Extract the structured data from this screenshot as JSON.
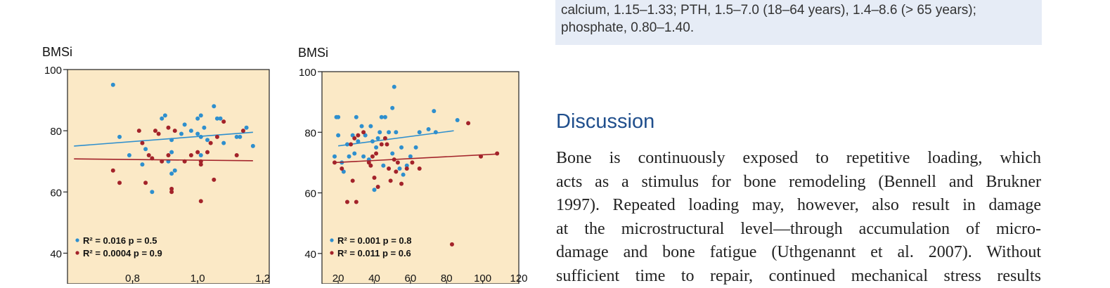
{
  "note_box": {
    "line1": "calcium, 1.15–1.33; PTH, 1.5–7.0 (18–64 years), 1.4–8.6 (> 65 years);",
    "line2": "phosphate, 0.80–1.40."
  },
  "discussion": {
    "heading": "Discussion",
    "lines": [
      "Bone is continuously exposed to repetitive loading, which",
      "acts as a stimulus for bone remodeling (Bennell and Brukner",
      "1997). Repeated loading may, however, also result in damage",
      "at the microstructural level—through accumulation of micro-",
      "damage and bone fatigue (Uthgenannt et al. 2007). Without",
      "sufficient time to repair, continued mechanical stress results"
    ]
  },
  "colors": {
    "panel_bg": "#fbe9c6",
    "series_blue": "#2e8fce",
    "series_red": "#a3232a",
    "heading_blue": "#1f4e8c",
    "note_bg": "#e6ecf6"
  },
  "chart_data": [
    {
      "type": "scatter",
      "ylabel": "BMSi",
      "xlim": [
        0.6,
        1.22
      ],
      "ylim": [
        30,
        100
      ],
      "xticks": [
        "0.8",
        "1.0",
        "1.2"
      ],
      "yticks": [
        "40",
        "60",
        "80",
        "100"
      ],
      "series": [
        {
          "label": "R² = 0.016    p = 0.5",
          "color": "blue",
          "points": [
            [
              0.74,
              95
            ],
            [
              0.76,
              78
            ],
            [
              0.79,
              72
            ],
            [
              0.83,
              69
            ],
            [
              0.84,
              74
            ],
            [
              0.86,
              60
            ],
            [
              0.89,
              84
            ],
            [
              0.9,
              85
            ],
            [
              0.91,
              70
            ],
            [
              0.92,
              73
            ],
            [
              0.92,
              66
            ],
            [
              0.92,
              77
            ],
            [
              0.93,
              67
            ],
            [
              0.95,
              79
            ],
            [
              0.96,
              82
            ],
            [
              0.98,
              80
            ],
            [
              1.0,
              79
            ],
            [
              1.0,
              84
            ],
            [
              1.01,
              85
            ],
            [
              1.01,
              78
            ],
            [
              1.01,
              72
            ],
            [
              1.02,
              81
            ],
            [
              1.03,
              77
            ],
            [
              1.05,
              88
            ],
            [
              1.06,
              84
            ],
            [
              1.07,
              84
            ],
            [
              1.08,
              76
            ],
            [
              1.12,
              78
            ],
            [
              1.13,
              78
            ],
            [
              1.15,
              81
            ],
            [
              1.17,
              75
            ]
          ],
          "trend": [
            [
              0.62,
              75
            ],
            [
              1.17,
              79.5
            ]
          ]
        },
        {
          "label": "R² = 0.0004  p = 0.9",
          "color": "red",
          "points": [
            [
              0.74,
              67
            ],
            [
              0.76,
              63
            ],
            [
              0.82,
              80
            ],
            [
              0.83,
              76
            ],
            [
              0.84,
              63
            ],
            [
              0.85,
              72
            ],
            [
              0.86,
              71
            ],
            [
              0.87,
              80
            ],
            [
              0.88,
              79
            ],
            [
              0.89,
              70
            ],
            [
              0.91,
              81
            ],
            [
              0.91,
              72
            ],
            [
              0.92,
              61
            ],
            [
              0.92,
              60
            ],
            [
              0.93,
              80
            ],
            [
              0.96,
              70
            ],
            [
              0.98,
              72
            ],
            [
              1.0,
              73
            ],
            [
              1.01,
              70
            ],
            [
              1.01,
              57
            ],
            [
              1.01,
              69
            ],
            [
              1.03,
              73
            ],
            [
              1.04,
              76
            ],
            [
              1.05,
              64
            ],
            [
              1.06,
              78
            ],
            [
              1.08,
              83
            ],
            [
              1.12,
              72
            ],
            [
              1.14,
              80
            ]
          ],
          "trend": [
            [
              0.62,
              70.8
            ],
            [
              1.17,
              70.2
            ]
          ]
        }
      ]
    },
    {
      "type": "scatter",
      "ylabel": "BMSi",
      "xlim": [
        11,
        120
      ],
      "ylim": [
        30,
        100
      ],
      "xticks": [
        "20",
        "40",
        "60",
        "80",
        "100",
        "120"
      ],
      "yticks": [
        "40",
        "60",
        "80",
        "100"
      ],
      "series": [
        {
          "label": "R² = 0.001  p = 0.8",
          "color": "blue",
          "points": [
            [
              18,
              72
            ],
            [
              19,
              85
            ],
            [
              20,
              85
            ],
            [
              20,
              79
            ],
            [
              22,
              70
            ],
            [
              23,
              67
            ],
            [
              25,
              76
            ],
            [
              26,
              72
            ],
            [
              28,
              79
            ],
            [
              29,
              73
            ],
            [
              30,
              85
            ],
            [
              31,
              77
            ],
            [
              33,
              82
            ],
            [
              34,
              72
            ],
            [
              35,
              79
            ],
            [
              37,
              71
            ],
            [
              38,
              82
            ],
            [
              39,
              77
            ],
            [
              40,
              61
            ],
            [
              41,
              75
            ],
            [
              42,
              78
            ],
            [
              43,
              80
            ],
            [
              44,
              85
            ],
            [
              45,
              69
            ],
            [
              46,
              85
            ],
            [
              48,
              80
            ],
            [
              50,
              73
            ],
            [
              50,
              88
            ],
            [
              51,
              95
            ],
            [
              52,
              80
            ],
            [
              54,
              68
            ],
            [
              55,
              75
            ],
            [
              56,
              66
            ],
            [
              58,
              69
            ],
            [
              60,
              72
            ],
            [
              63,
              75
            ],
            [
              65,
              80
            ],
            [
              70,
              81
            ],
            [
              73,
              87
            ],
            [
              74,
              80
            ],
            [
              86,
              84
            ]
          ],
          "trend": [
            [
              20,
              75.5
            ],
            [
              84,
              80.5
            ]
          ]
        },
        {
          "label": "R² = 0.011  p = 0.6",
          "color": "red",
          "points": [
            [
              18,
              70
            ],
            [
              22,
              68
            ],
            [
              25,
              57
            ],
            [
              27,
              76
            ],
            [
              28,
              64
            ],
            [
              29,
              78
            ],
            [
              30,
              57
            ],
            [
              31,
              79
            ],
            [
              34,
              80
            ],
            [
              37,
              70
            ],
            [
              38,
              69
            ],
            [
              39,
              72
            ],
            [
              40,
              65
            ],
            [
              41,
              73
            ],
            [
              42,
              62
            ],
            [
              44,
              76
            ],
            [
              46,
              78
            ],
            [
              47,
              76
            ],
            [
              48,
              68
            ],
            [
              49,
              64
            ],
            [
              51,
              71
            ],
            [
              52,
              67
            ],
            [
              53,
              70
            ],
            [
              55,
              63
            ],
            [
              58,
              68
            ],
            [
              61,
              70
            ],
            [
              65,
              68
            ],
            [
              83,
              43
            ],
            [
              92,
              83
            ],
            [
              99,
              72
            ],
            [
              108,
              73
            ]
          ],
          "trend": [
            [
              18,
              70
            ],
            [
              108,
              72.8
            ]
          ]
        }
      ]
    }
  ]
}
